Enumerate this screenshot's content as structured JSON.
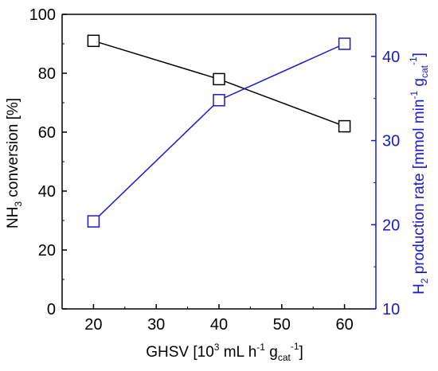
{
  "chart_data": {
    "type": "line",
    "x": [
      20,
      40,
      60
    ],
    "xlabel": {
      "main": "GHSV [10",
      "sup1": "3",
      "mid1": " mL h",
      "sup2": "-1",
      "mid2": " g",
      "sub": "cat",
      "sup3": "-1",
      "end": "]"
    },
    "xlim": [
      15,
      65
    ],
    "xticks": [
      20,
      30,
      40,
      50,
      60
    ],
    "y_left": {
      "label": {
        "pre": "NH",
        "sub": "3",
        "post": " conversion [%]"
      },
      "ylim": [
        0,
        100
      ],
      "ticks": [
        0,
        20,
        40,
        60,
        80,
        100
      ],
      "color": "#000000"
    },
    "y_right": {
      "label": {
        "pre": "H",
        "sub1": "2",
        "mid": " production rate [mmol min",
        "sup1": "-1",
        "mid2": " g",
        "sub2": "cat",
        "sup2": "-1",
        "end": "]"
      },
      "ylim": [
        10,
        45
      ],
      "ticks": [
        10,
        20,
        30,
        40
      ],
      "color": "#1a1acc"
    },
    "series": [
      {
        "axis": "left",
        "color": "#000000",
        "marker": "open-square",
        "values": [
          91,
          78,
          62
        ]
      },
      {
        "axis": "right",
        "color": "#1a1acc",
        "marker": "open-square",
        "values": [
          20.4,
          34.8,
          41.5
        ]
      }
    ]
  }
}
